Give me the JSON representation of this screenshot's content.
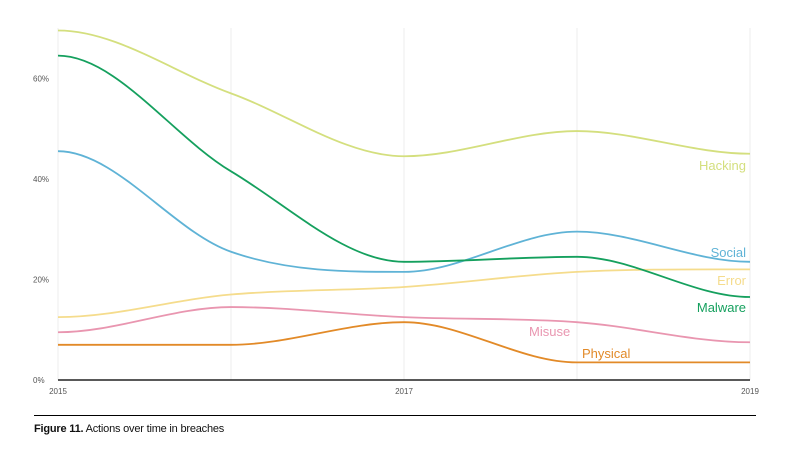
{
  "caption": {
    "figure_number": "Figure 11.",
    "text": " Actions over time in breaches"
  },
  "chart_data": {
    "type": "line",
    "x": [
      2015,
      2016,
      2017,
      2018,
      2019
    ],
    "x_tick_labels": [
      {
        "x": 2015,
        "label": "2015"
      },
      {
        "x": 2017,
        "label": "2017"
      },
      {
        "x": 2019,
        "label": "2019"
      }
    ],
    "y_ticks": [
      {
        "value": 0,
        "label": "0%"
      },
      {
        "value": 20,
        "label": "20%"
      },
      {
        "value": 40,
        "label": "40%"
      },
      {
        "value": 60,
        "label": "60%"
      }
    ],
    "ylim": [
      0,
      70
    ],
    "xlim": [
      2015,
      2019
    ],
    "grid": "vertical",
    "series": [
      {
        "name": "Hacking",
        "color": "#d4df7e",
        "values": [
          69.5,
          57,
          44.5,
          49.5,
          45
        ]
      },
      {
        "name": "Social",
        "color": "#5fb3d6",
        "values": [
          45.5,
          25.5,
          21.5,
          29.5,
          23.5
        ]
      },
      {
        "name": "Error",
        "color": "#f5dc8c",
        "values": [
          12.5,
          17,
          18.5,
          21.5,
          22
        ]
      },
      {
        "name": "Malware",
        "color": "#15a05e",
        "values": [
          64.5,
          41.5,
          23.5,
          24.5,
          16.5
        ]
      },
      {
        "name": "Misuse",
        "color": "#e996b0",
        "values": [
          9.5,
          14.5,
          12.5,
          11.5,
          7.5
        ]
      },
      {
        "name": "Physical",
        "color": "#e28a28",
        "values": [
          7,
          7,
          11.5,
          3.5,
          3.5
        ]
      }
    ]
  }
}
